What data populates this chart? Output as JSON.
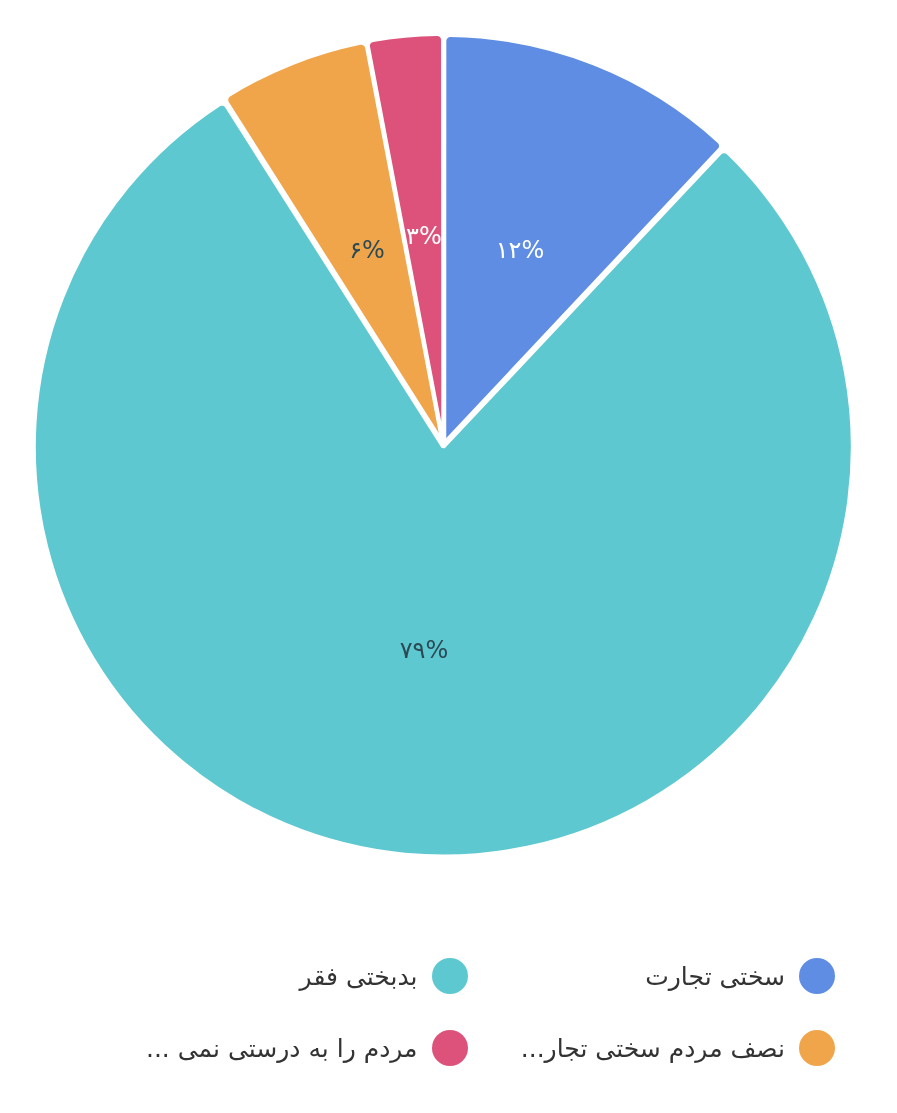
{
  "chart_data": {
    "type": "pie",
    "categories": [
      "سختی تجارت",
      "بدبختی فقر",
      "نصف مردم سختی تجار...",
      "مردم را به درستی نمی ..."
    ],
    "values": [
      12,
      79,
      6,
      3
    ],
    "colors": [
      "#5f8de3",
      "#5ec8d0",
      "#f0a54b",
      "#dc527a"
    ],
    "value_labels": [
      "۱۲%",
      "۷۹%",
      "۶%",
      "۳%"
    ],
    "legend": "bottom"
  }
}
